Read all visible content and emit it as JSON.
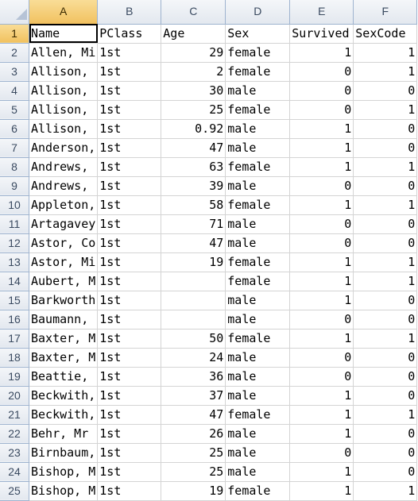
{
  "columns": [
    "A",
    "B",
    "C",
    "D",
    "E",
    "F"
  ],
  "active_cell": "A1",
  "rows": [
    {
      "n": "1",
      "cells": [
        "Name",
        "PClass",
        "Age",
        "Sex",
        "Survived",
        "SexCode"
      ]
    },
    {
      "n": "2",
      "cells": [
        "Allen, Mi",
        "1st",
        "29",
        "female",
        "1",
        "1"
      ]
    },
    {
      "n": "3",
      "cells": [
        "Allison,",
        "1st",
        "2",
        "female",
        "0",
        "1"
      ]
    },
    {
      "n": "4",
      "cells": [
        "Allison,",
        "1st",
        "30",
        "male",
        "0",
        "0"
      ]
    },
    {
      "n": "5",
      "cells": [
        "Allison,",
        "1st",
        "25",
        "female",
        "0",
        "1"
      ]
    },
    {
      "n": "6",
      "cells": [
        "Allison,",
        "1st",
        "0.92",
        "male",
        "1",
        "0"
      ]
    },
    {
      "n": "7",
      "cells": [
        "Anderson,",
        "1st",
        "47",
        "male",
        "1",
        "0"
      ]
    },
    {
      "n": "8",
      "cells": [
        "Andrews,",
        "1st",
        "63",
        "female",
        "1",
        "1"
      ]
    },
    {
      "n": "9",
      "cells": [
        "Andrews,",
        "1st",
        "39",
        "male",
        "0",
        "0"
      ]
    },
    {
      "n": "10",
      "cells": [
        "Appleton,",
        "1st",
        "58",
        "female",
        "1",
        "1"
      ]
    },
    {
      "n": "11",
      "cells": [
        "Artagavey",
        "1st",
        "71",
        "male",
        "0",
        "0"
      ]
    },
    {
      "n": "12",
      "cells": [
        "Astor, Co",
        "1st",
        "47",
        "male",
        "0",
        "0"
      ]
    },
    {
      "n": "13",
      "cells": [
        "Astor, Mi",
        "1st",
        "19",
        "female",
        "1",
        "1"
      ]
    },
    {
      "n": "14",
      "cells": [
        "Aubert, M",
        "1st",
        "",
        "female",
        "1",
        "1"
      ]
    },
    {
      "n": "15",
      "cells": [
        "Barkworth",
        "1st",
        "",
        "male",
        "1",
        "0"
      ]
    },
    {
      "n": "16",
      "cells": [
        "Baumann, ",
        "1st",
        "",
        "male",
        "0",
        "0"
      ]
    },
    {
      "n": "17",
      "cells": [
        "Baxter, M",
        "1st",
        "50",
        "female",
        "1",
        "1"
      ]
    },
    {
      "n": "18",
      "cells": [
        "Baxter, M",
        "1st",
        "24",
        "male",
        "0",
        "0"
      ]
    },
    {
      "n": "19",
      "cells": [
        "Beattie, ",
        "1st",
        "36",
        "male",
        "0",
        "0"
      ]
    },
    {
      "n": "20",
      "cells": [
        "Beckwith,",
        "1st",
        "37",
        "male",
        "1",
        "0"
      ]
    },
    {
      "n": "21",
      "cells": [
        "Beckwith,",
        "1st",
        "47",
        "female",
        "1",
        "1"
      ]
    },
    {
      "n": "22",
      "cells": [
        "Behr, Mr ",
        "1st",
        "26",
        "male",
        "1",
        "0"
      ]
    },
    {
      "n": "23",
      "cells": [
        "Birnbaum,",
        "1st",
        "25",
        "male",
        "0",
        "0"
      ]
    },
    {
      "n": "24",
      "cells": [
        "Bishop, M",
        "1st",
        "25",
        "male",
        "1",
        "0"
      ]
    },
    {
      "n": "25",
      "cells": [
        "Bishop, M",
        "1st",
        "19",
        "female",
        "1",
        "1"
      ]
    }
  ]
}
